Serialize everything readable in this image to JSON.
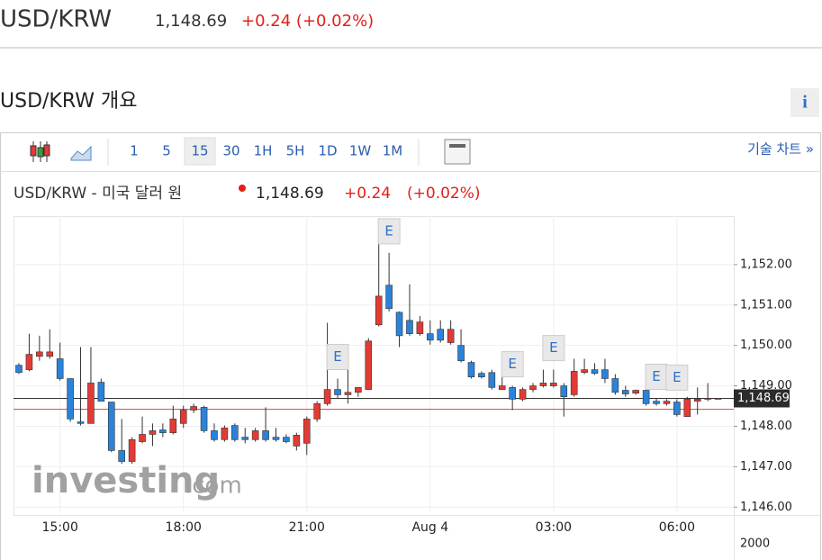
{
  "header": {
    "symbol": "USD/KRW",
    "price": "1,148.69",
    "change": "+0.24 (+0.02%)"
  },
  "section": {
    "title": "USD/KRW 개요",
    "info": "i"
  },
  "toolbar": {
    "intervals": [
      "1",
      "5",
      "15",
      "30",
      "1H",
      "5H",
      "1D",
      "1W",
      "1M"
    ],
    "selected": "15",
    "technical": "기술 차트 »"
  },
  "legend": {
    "name": "USD/KRW - 미국 달러 원",
    "price": "1,148.69",
    "change": "+0.24",
    "percent": "(+0.02%)"
  },
  "chart_data": {
    "type": "candlestick",
    "categories": [
      null,
      null,
      null,
      null,
      "15:00",
      null,
      null,
      null,
      null,
      null,
      null,
      null,
      null,
      null,
      null,
      null,
      "18:00",
      null,
      null,
      null,
      null,
      null,
      null,
      null,
      null,
      null,
      null,
      null,
      "21:00",
      null,
      null,
      null,
      null,
      null,
      null,
      null,
      null,
      null,
      null,
      null,
      "Aug 4",
      null,
      null,
      null,
      null,
      null,
      null,
      null,
      null,
      null,
      null,
      null,
      "03:00",
      null,
      null,
      null,
      null,
      null,
      null,
      null,
      null,
      null,
      null,
      null,
      "06:00",
      null,
      null,
      null,
      null
    ],
    "open": [
      1149.51,
      1149.4,
      1149.73,
      1149.73,
      1149.67,
      1149.18,
      1148.11,
      1148.07,
      1149.09,
      1148.6,
      1147.4,
      1147.13,
      1147.62,
      1147.8,
      1147.91,
      1147.84,
      1148.07,
      1148.4,
      1148.47,
      1147.89,
      1147.67,
      1148.02,
      1147.73,
      1147.67,
      1147.89,
      1147.73,
      1147.73,
      1147.51,
      1147.58,
      1148.18,
      1148.56,
      1148.91,
      1148.78,
      1148.84,
      1148.91,
      1150.51,
      1151.49,
      1150.82,
      1150.62,
      1150.29,
      1150.29,
      1150.4,
      1150.07,
      1150.0,
      1149.58,
      1149.31,
      1149.33,
      1148.91,
      1148.96,
      1148.67,
      1148.91,
      1149.0,
      1149.0,
      1149.0,
      1148.78,
      1149.33,
      1149.4,
      1149.4,
      1149.18,
      1148.89,
      1148.82,
      1148.89,
      1148.62,
      1148.56,
      1148.6,
      1148.24,
      1148.62,
      1148.67,
      1148.67
    ],
    "high": [
      1149.56,
      1150.29,
      1150.24,
      1150.4,
      1150.07,
      1149.18,
      1149.96,
      1149.96,
      1149.18,
      1148.6,
      1148.18,
      1147.73,
      1148.24,
      1148.07,
      1148.07,
      1148.51,
      1148.51,
      1148.56,
      1148.51,
      1148.07,
      1148.02,
      1148.07,
      1147.96,
      1147.96,
      1148.47,
      1147.96,
      1147.8,
      1147.84,
      1148.24,
      1148.62,
      1150.56,
      1149.18,
      1149.4,
      1148.96,
      1150.18,
      1152.84,
      1152.29,
      1150.84,
      1151.51,
      1150.73,
      1150.62,
      1150.62,
      1150.62,
      1150.4,
      1149.62,
      1149.36,
      1149.4,
      1149.29,
      1149.0,
      1148.96,
      1149.07,
      1149.4,
      1149.4,
      1149.07,
      1149.67,
      1149.67,
      1149.56,
      1149.67,
      1149.29,
      1149.0,
      1148.91,
      1149.0,
      1148.69,
      1148.67,
      1148.67,
      1148.73,
      1148.96,
      1149.07,
      1148.69
    ],
    "low": [
      1149.29,
      1149.36,
      1149.62,
      1149.67,
      1149.13,
      1148.11,
      1148.02,
      1148.07,
      1148.62,
      1147.36,
      1147.07,
      1147.07,
      1147.58,
      1147.51,
      1147.73,
      1147.8,
      1147.96,
      1148.33,
      1147.84,
      1147.62,
      1147.62,
      1147.62,
      1147.58,
      1147.62,
      1147.62,
      1147.62,
      1147.58,
      1147.4,
      1147.29,
      1148.11,
      1148.51,
      1148.69,
      1148.56,
      1148.73,
      1148.91,
      1150.47,
      1150.84,
      1149.96,
      1150.24,
      1150.24,
      1150.02,
      1150.07,
      1150.02,
      1149.58,
      1149.18,
      1149.18,
      1148.91,
      1148.91,
      1148.4,
      1148.62,
      1148.84,
      1148.96,
      1148.96,
      1148.24,
      1148.73,
      1149.29,
      1149.27,
      1149.07,
      1148.78,
      1148.73,
      1148.78,
      1148.51,
      1148.51,
      1148.51,
      1148.24,
      1148.24,
      1148.29,
      1148.62,
      1148.67
    ],
    "close": [
      1149.33,
      1149.78,
      1149.84,
      1149.84,
      1149.18,
      1148.18,
      1148.07,
      1149.07,
      1148.62,
      1147.4,
      1147.13,
      1147.67,
      1147.8,
      1147.89,
      1147.84,
      1148.18,
      1148.4,
      1148.49,
      1147.89,
      1147.67,
      1147.96,
      1147.67,
      1147.67,
      1147.89,
      1147.67,
      1147.67,
      1147.62,
      1147.78,
      1148.18,
      1148.56,
      1148.91,
      1148.78,
      1148.84,
      1148.96,
      1150.11,
      1151.22,
      1150.91,
      1150.24,
      1150.29,
      1150.58,
      1150.13,
      1150.13,
      1150.4,
      1149.62,
      1149.22,
      1149.22,
      1148.96,
      1149.0,
      1148.67,
      1148.91,
      1149.0,
      1149.07,
      1149.07,
      1148.73,
      1149.36,
      1149.4,
      1149.31,
      1149.18,
      1148.84,
      1148.8,
      1148.89,
      1148.56,
      1148.56,
      1148.62,
      1148.29,
      1148.67,
      1148.67,
      1148.69,
      1148.69
    ],
    "up_color": "#e23b35",
    "down_color": "#2b82d9",
    "ylim": [
      1145.85,
      1153.2
    ],
    "yticks": [
      {
        "value": 1146,
        "label": "1,146.00"
      },
      {
        "value": 1147,
        "label": "1,147.00"
      },
      {
        "value": 1148,
        "label": "1,148.00"
      },
      {
        "value": 1149,
        "label": "1,149.00"
      },
      {
        "value": 1150,
        "label": "1,150.00"
      },
      {
        "value": 1151,
        "label": "1,151.00"
      },
      {
        "value": 1152,
        "label": "1,152.00"
      }
    ],
    "grid": true,
    "price_line": {
      "value": 1148.69,
      "label": "1,148.69"
    },
    "ref_line": 1148.42,
    "events": [
      {
        "index": 31,
        "label": "E"
      },
      {
        "index": 36,
        "label": "E"
      },
      {
        "index": 48,
        "label": "E"
      },
      {
        "index": 52,
        "label": "E"
      },
      {
        "index": 62,
        "label": "E"
      },
      {
        "index": 64,
        "label": "E"
      }
    ],
    "volume_label": "2000",
    "watermark": "investing",
    "watermark_suffix": ".com"
  }
}
